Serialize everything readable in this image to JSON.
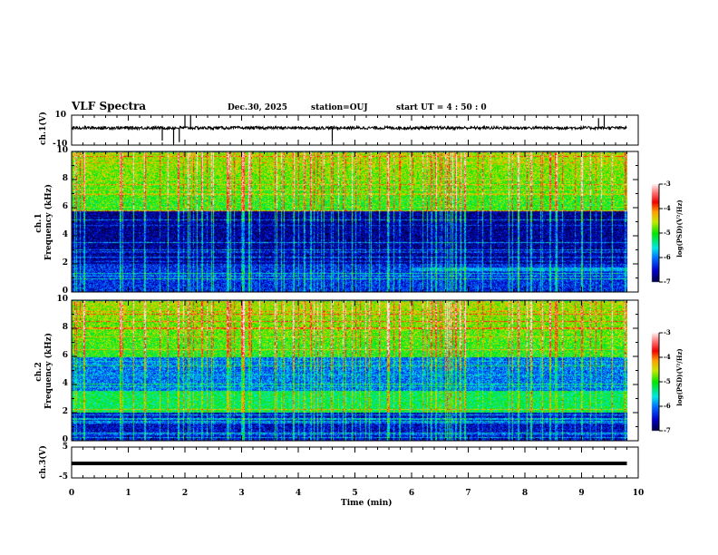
{
  "header": {
    "title": "VLF Spectra",
    "date": "Dec.30, 2025",
    "station": "station=OUJ",
    "start": "start  UT =   4 : 50 : 0"
  },
  "chart_data": [
    {
      "type": "line",
      "name": "ch1 waveform",
      "ylabel": "ch.1(V)",
      "ylim": [
        -10,
        10
      ],
      "yticks": [
        "10",
        "-10"
      ],
      "xlim": [
        0,
        10
      ],
      "baseline_v": 1.5,
      "noise_v": 1.0,
      "spikes": [
        {
          "t": 1.6,
          "v": -7
        },
        {
          "t": 1.8,
          "v": -9
        },
        {
          "t": 2.0,
          "v": 10
        },
        {
          "t": 2.1,
          "v": 10
        },
        {
          "t": 1.9,
          "v": -8
        },
        {
          "t": 4.6,
          "v": -8
        },
        {
          "t": 9.3,
          "v": 8
        },
        {
          "t": 9.4,
          "v": 10
        }
      ]
    },
    {
      "type": "heatmap",
      "name": "ch1 spectrogram",
      "ylabel": "ch.1",
      "ylabel2": "Frequency (kHz)",
      "ylim": [
        0,
        10
      ],
      "yticks": [
        "0",
        "2",
        "4",
        "6",
        "8",
        "10"
      ],
      "xlim": [
        0,
        10
      ],
      "data_end_min": 9.8,
      "colorbar": {
        "label": "log(PSD)(V²/Hz)",
        "range": [
          -7,
          -3
        ],
        "ticks": [
          "-3",
          "-4",
          "-5",
          "-6",
          "-7"
        ]
      },
      "band_levels_log_psd": [
        {
          "f_khz": [
            0,
            2
          ],
          "level": -6.3
        },
        {
          "f_khz": [
            2,
            5.8
          ],
          "level": -6.7
        },
        {
          "f_khz": [
            5.8,
            10
          ],
          "level": -5.0
        }
      ],
      "enhanced_band": {
        "f_khz": [
          1.5,
          1.8
        ],
        "t_min": [
          6.0,
          9.8
        ],
        "level": -5.8
      }
    },
    {
      "type": "heatmap",
      "name": "ch2 spectrogram",
      "ylabel": "ch.2",
      "ylabel2": "Frequency (kHz)",
      "ylim": [
        0,
        10
      ],
      "yticks": [
        "0",
        "2",
        "4",
        "6",
        "8",
        "10"
      ],
      "xlim": [
        0,
        10
      ],
      "data_end_min": 9.8,
      "colorbar": {
        "label": "log(PSD)(V²/Hz)",
        "range": [
          -7,
          -3
        ],
        "ticks": [
          "-3",
          "-4",
          "-5",
          "-6",
          "-7"
        ]
      },
      "band_levels_log_psd": [
        {
          "f_khz": [
            0,
            2
          ],
          "level": -6.5
        },
        {
          "f_khz": [
            2,
            3.6
          ],
          "level": -5.2
        },
        {
          "f_khz": [
            3.6,
            6
          ],
          "level": -6.0
        },
        {
          "f_khz": [
            6,
            10
          ],
          "level": -5.0
        }
      ]
    },
    {
      "type": "line",
      "name": "ch3 waveform",
      "ylabel": "ch.3(V)",
      "ylim": [
        -5,
        5
      ],
      "yticks": [
        "5",
        "-5"
      ],
      "xlim": [
        0,
        10
      ],
      "baseline_v": -0.3,
      "xlabel": "Time (min)",
      "xticks": [
        "0",
        "1",
        "2",
        "3",
        "4",
        "5",
        "6",
        "7",
        "8",
        "9",
        "10"
      ]
    }
  ]
}
